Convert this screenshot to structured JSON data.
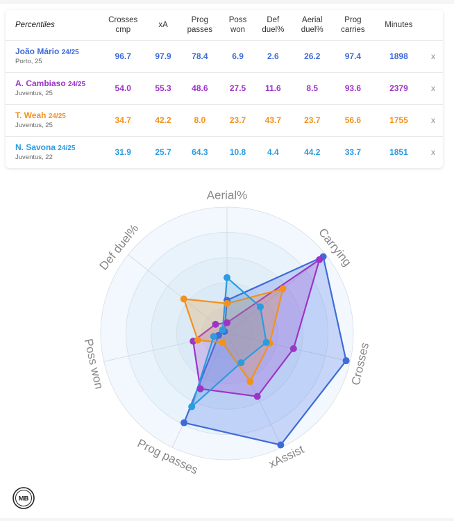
{
  "table": {
    "header_label": "Percentiles",
    "columns": [
      {
        "line1": "Crosses",
        "line2": "cmp"
      },
      {
        "line1": "xA",
        "line2": ""
      },
      {
        "line1": "Prog",
        "line2": "passes"
      },
      {
        "line1": "Poss",
        "line2": "won"
      },
      {
        "line1": "Def",
        "line2": "duel%"
      },
      {
        "line1": "Aerial",
        "line2": "duel%"
      },
      {
        "line1": "Prog",
        "line2": "carries"
      },
      {
        "line1": "Minutes",
        "line2": ""
      }
    ],
    "close_label": "x",
    "rows": [
      {
        "name": "João Mário",
        "season": "24/25",
        "team": "Porto, 25",
        "color": "#3f6ad8",
        "values": [
          "96.7",
          "97.9",
          "78.4",
          "6.9",
          "2.6",
          "26.2",
          "97.4",
          "1898"
        ]
      },
      {
        "name": "A. Cambiaso",
        "season": "24/25",
        "team": "Juventus, 25",
        "color": "#9b35c7",
        "values": [
          "54.0",
          "55.3",
          "48.6",
          "27.5",
          "11.6",
          "8.5",
          "93.6",
          "2379"
        ]
      },
      {
        "name": "T. Weah",
        "season": "24/25",
        "team": "Juventus, 25",
        "color": "#f2921c",
        "values": [
          "34.7",
          "42.2",
          "8.0",
          "23.7",
          "43.7",
          "23.7",
          "56.6",
          "1755"
        ]
      },
      {
        "name": "N. Savona",
        "season": "24/25",
        "team": "Juventus, 22",
        "color": "#2c9be0",
        "values": [
          "31.9",
          "25.7",
          "64.3",
          "10.8",
          "4.4",
          "44.2",
          "33.7",
          "1851"
        ]
      }
    ]
  },
  "chart_data": {
    "type": "radar",
    "title": "",
    "range": [
      0,
      100
    ],
    "axes": [
      "Aerial%",
      "Carrying",
      "Crosses",
      "xAssist",
      "Prog passes",
      "Poss won",
      "Def duel%"
    ],
    "series": [
      {
        "name": "João Mário",
        "color": "#3f6ad8",
        "fill": "rgba(70,110,235,0.25)",
        "values": [
          26.2,
          97.4,
          96.7,
          97.9,
          78.4,
          6.9,
          2.6
        ]
      },
      {
        "name": "A. Cambiaso",
        "color": "#9b35c7",
        "fill": "rgba(155,53,199,0.22)",
        "values": [
          8.5,
          93.6,
          54.0,
          55.3,
          48.6,
          27.5,
          11.6
        ]
      },
      {
        "name": "T. Weah",
        "color": "#f2921c",
        "fill": "rgba(242,146,28,0.22)",
        "values": [
          23.7,
          56.6,
          34.7,
          42.2,
          8.0,
          23.7,
          43.7
        ]
      },
      {
        "name": "N. Savona",
        "color": "#2c9be0",
        "fill": "rgba(44,155,224,0.15)",
        "values": [
          44.2,
          33.7,
          31.9,
          25.7,
          64.3,
          10.8,
          4.4
        ]
      }
    ]
  },
  "logo": {
    "text": "MB"
  }
}
